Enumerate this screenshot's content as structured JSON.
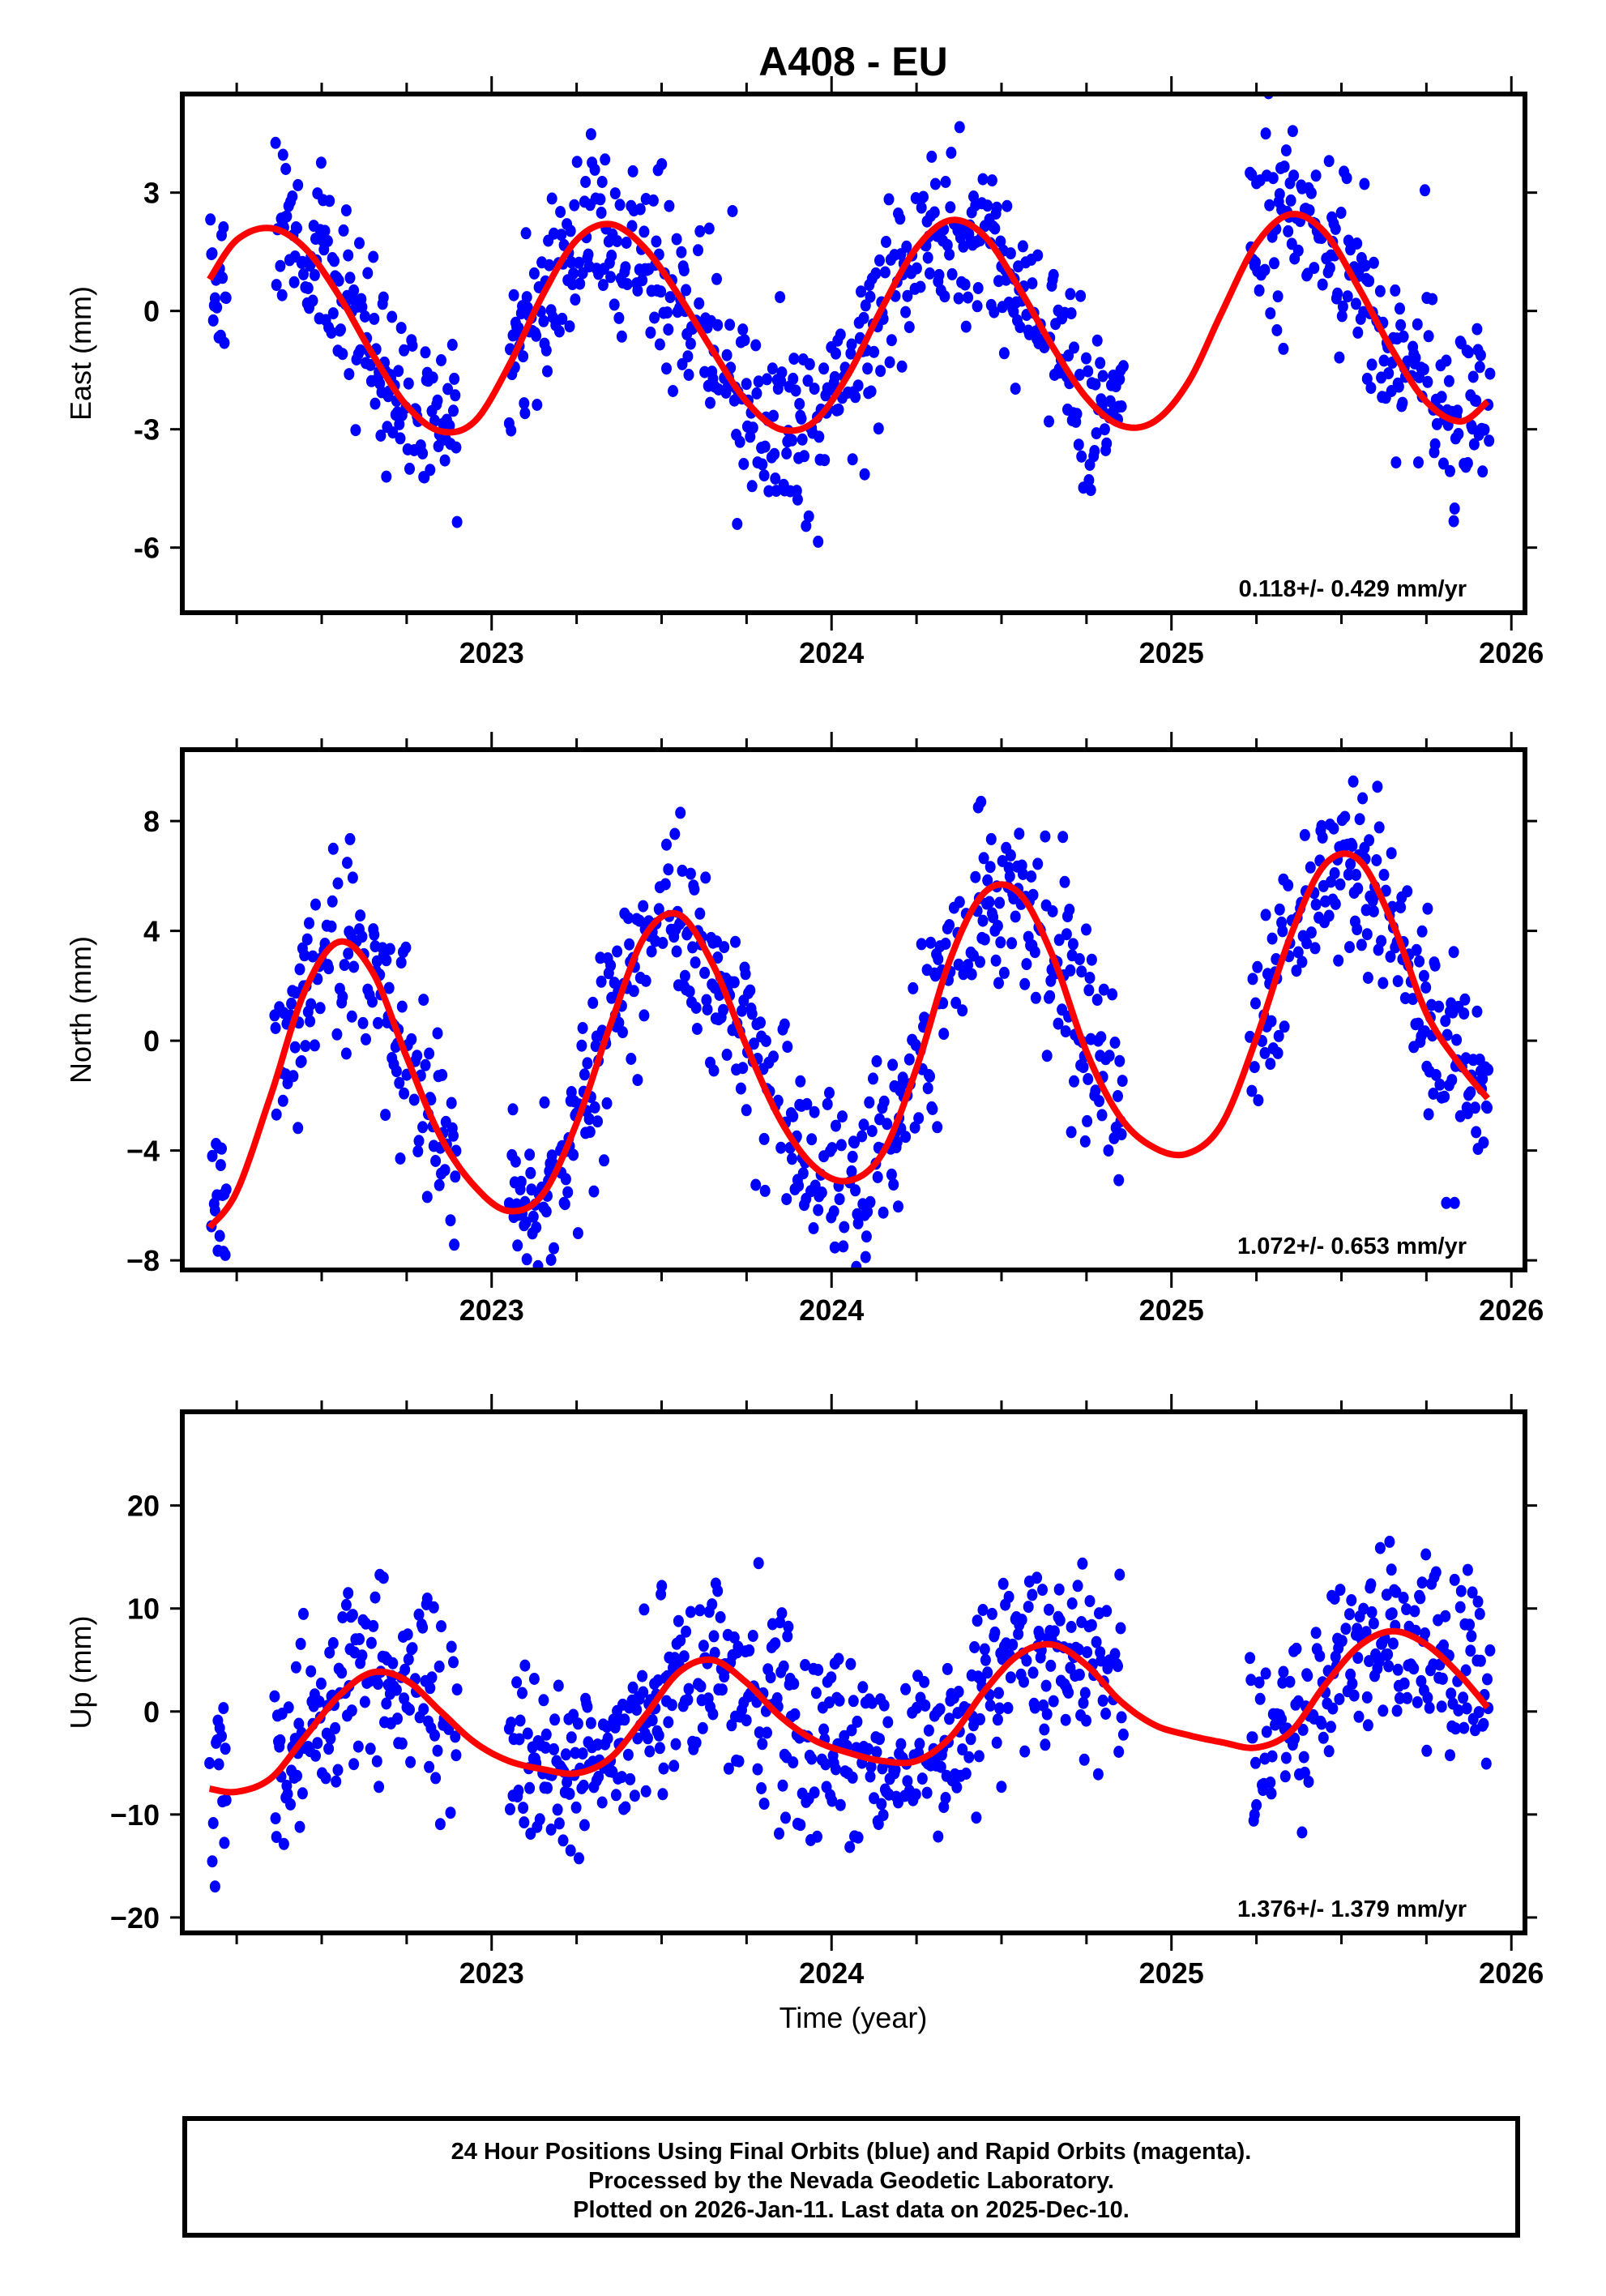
{
  "chart_data": {
    "type": "scatter",
    "title": "A408 - EU",
    "xlabel": "Time (year)",
    "x_ticks": [
      "2023",
      "2024",
      "2025",
      "2026"
    ],
    "xlim": [
      2022.09,
      2026.04
    ],
    "colors": {
      "points": "#0000ff",
      "fit": "#ff0000",
      "frame": "#000000"
    },
    "panels": [
      {
        "name": "east",
        "ylabel": "East (mm)",
        "ylim": [
          -7.65,
          5.5
        ],
        "y_ticks": [
          3,
          0,
          -3,
          -6
        ],
        "y_tick_labels": [
          "3",
          "0",
          "-3",
          "-6"
        ],
        "rate_text": "0.118+/- 0.429 mm/yr",
        "fit": {
          "x": [
            2022.17,
            2022.25,
            2022.35,
            2022.45,
            2022.55,
            2022.65,
            2022.75,
            2022.85,
            2022.95,
            2023.05,
            2023.15,
            2023.25,
            2023.35,
            2023.45,
            2023.55,
            2023.65,
            2023.75,
            2023.85,
            2023.95,
            2024.05,
            2024.15,
            2024.25,
            2024.35,
            2024.45,
            2024.55,
            2024.65,
            2024.75,
            2024.85,
            2024.95,
            2025.05,
            2025.15,
            2025.25,
            2025.35,
            2025.45,
            2025.55,
            2025.65,
            2025.75,
            2025.85,
            2025.93
          ],
          "y": [
            0.8,
            1.8,
            2.1,
            1.6,
            0.4,
            -1.1,
            -2.4,
            -3.05,
            -2.8,
            -1.4,
            0.4,
            1.8,
            2.2,
            1.6,
            0.4,
            -1.0,
            -2.3,
            -3.0,
            -2.8,
            -1.6,
            0.1,
            1.6,
            2.3,
            1.9,
            0.6,
            -0.9,
            -2.2,
            -2.9,
            -2.8,
            -1.8,
            0.0,
            1.7,
            2.45,
            2.0,
            0.6,
            -1.0,
            -2.3,
            -2.8,
            -2.3
          ]
        },
        "points": {
          "seed": 11,
          "spread": 1.15,
          "x": [],
          "y": []
        }
      },
      {
        "name": "north",
        "ylabel": "North (mm)",
        "ylim": [
          -8.35,
          10.6
        ],
        "y_ticks": [
          8,
          4,
          0,
          -4,
          -8
        ],
        "y_tick_labels": [
          "8",
          "4",
          "0",
          "−4",
          "−8"
        ],
        "rate_text": "1.072+/- 0.653 mm/yr",
        "fit": {
          "x": [
            2022.17,
            2022.25,
            2022.35,
            2022.45,
            2022.55,
            2022.65,
            2022.75,
            2022.85,
            2022.95,
            2023.05,
            2023.15,
            2023.25,
            2023.35,
            2023.45,
            2023.55,
            2023.65,
            2023.75,
            2023.85,
            2023.95,
            2024.05,
            2024.15,
            2024.25,
            2024.35,
            2024.45,
            2024.55,
            2024.65,
            2024.75,
            2024.85,
            2024.95,
            2025.05,
            2025.15,
            2025.25,
            2025.35,
            2025.45,
            2025.55,
            2025.65,
            2025.75,
            2025.85,
            2025.93
          ],
          "y": [
            -6.8,
            -5.5,
            -2.0,
            1.8,
            3.6,
            2.5,
            -0.6,
            -3.5,
            -5.3,
            -6.2,
            -5.6,
            -3.0,
            0.6,
            3.8,
            4.6,
            2.8,
            -0.2,
            -2.9,
            -4.6,
            -5.1,
            -4.1,
            -1.0,
            3.0,
            5.4,
            5.4,
            3.1,
            -0.4,
            -2.8,
            -3.9,
            -4.1,
            -3.0,
            0.1,
            3.8,
            6.4,
            6.6,
            4.3,
            1.0,
            -0.9,
            -2.1
          ]
        },
        "points": {
          "seed": 23,
          "spread": 1.7,
          "x": [],
          "y": []
        }
      },
      {
        "name": "up",
        "ylabel": "Up (mm)",
        "ylim": [
          -21.5,
          29.1
        ],
        "y_ticks": [
          20,
          10,
          0,
          -10,
          -20
        ],
        "y_tick_labels": [
          "20",
          "10",
          "0",
          "−10",
          "−20"
        ],
        "rate_text": "1.376+/- 1.379 mm/yr",
        "fit": {
          "x": [
            2022.17,
            2022.25,
            2022.35,
            2022.45,
            2022.55,
            2022.65,
            2022.75,
            2022.85,
            2022.95,
            2023.05,
            2023.15,
            2023.25,
            2023.35,
            2023.45,
            2023.55,
            2023.65,
            2023.75,
            2023.85,
            2023.95,
            2024.05,
            2024.15,
            2024.25,
            2024.35,
            2024.45,
            2024.55,
            2024.65,
            2024.75,
            2024.85,
            2024.95,
            2025.05,
            2025.15,
            2025.25,
            2025.35,
            2025.45,
            2025.55,
            2025.65,
            2025.75,
            2025.85,
            2025.93
          ],
          "y": [
            -7.5,
            -7.8,
            -6.5,
            -2.5,
            1.5,
            3.8,
            3.0,
            0.0,
            -3.0,
            -4.8,
            -5.6,
            -6.0,
            -4.5,
            -0.5,
            3.8,
            5.0,
            2.8,
            -0.5,
            -2.8,
            -4.0,
            -4.8,
            -4.8,
            -2.5,
            2.0,
            5.5,
            6.5,
            4.5,
            1.0,
            -1.3,
            -2.3,
            -3.0,
            -3.5,
            -2.0,
            2.5,
            6.3,
            7.8,
            6.5,
            3.5,
            0.4
          ]
        },
        "points": {
          "seed": 37,
          "spread": 4.6,
          "x": [],
          "y": []
        }
      }
    ]
  },
  "coverage_gaps": [
    [
      2022.22,
      2022.36
    ],
    [
      2022.9,
      2023.05
    ],
    [
      2024.86,
      2025.23
    ]
  ],
  "footer": {
    "line1": "24 Hour Positions Using Final Orbits (blue) and Rapid Orbits (magenta).",
    "line2": "Processed by the Nevada Geodetic Laboratory.",
    "line3": "Plotted on 2026-Jan-11. Last data on 2025-Dec-10."
  }
}
